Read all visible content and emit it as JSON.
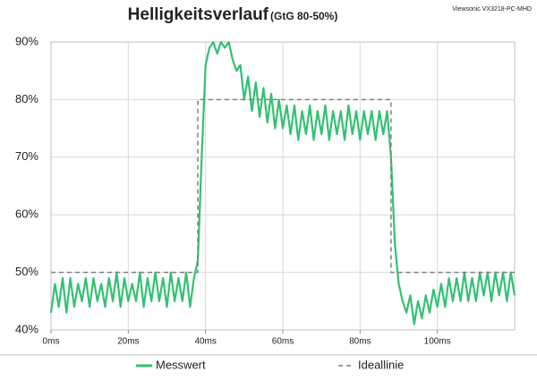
{
  "chart_data": {
    "type": "line",
    "title": "Helligkeitsverlauf",
    "subtitle": "(GtG 80-50%)",
    "annotation": "Viewsonic VX3218-PC-MHD",
    "xlim": [
      0,
      120
    ],
    "xticks": [
      {
        "value": 0,
        "label": "0ms"
      },
      {
        "value": 20,
        "label": "20ms"
      },
      {
        "value": 40,
        "label": "40ms"
      },
      {
        "value": 60,
        "label": "60ms"
      },
      {
        "value": 80,
        "label": "80ms"
      },
      {
        "value": 100,
        "label": "100ms"
      }
    ],
    "ylim": [
      40,
      90
    ],
    "yticks": [
      {
        "value": 40,
        "label": "40%"
      },
      {
        "value": 50,
        "label": "50%"
      },
      {
        "value": 60,
        "label": "60%"
      },
      {
        "value": 70,
        "label": "70%"
      },
      {
        "value": 80,
        "label": "80%"
      },
      {
        "value": 90,
        "label": "90%"
      }
    ],
    "grid": true,
    "legend": "bottom",
    "series": [
      {
        "name": "Messwert",
        "color": "#33c172",
        "dash": false,
        "x": [
          0,
          1,
          2,
          3,
          4,
          5,
          6,
          7,
          8,
          9,
          10,
          11,
          12,
          13,
          14,
          15,
          16,
          17,
          18,
          19,
          20,
          21,
          22,
          23,
          24,
          25,
          26,
          27,
          28,
          29,
          30,
          31,
          32,
          33,
          34,
          35,
          36,
          37,
          38,
          39,
          40,
          41,
          42,
          43,
          44,
          45,
          46,
          47,
          48,
          49,
          50,
          51,
          52,
          53,
          54,
          55,
          56,
          57,
          58,
          59,
          60,
          61,
          62,
          63,
          64,
          65,
          66,
          67,
          68,
          69,
          70,
          71,
          72,
          73,
          74,
          75,
          76,
          77,
          78,
          79,
          80,
          81,
          82,
          83,
          84,
          85,
          86,
          87,
          88,
          89,
          90,
          91,
          92,
          93,
          94,
          95,
          96,
          97,
          98,
          99,
          100,
          101,
          102,
          103,
          104,
          105,
          106,
          107,
          108,
          109,
          110,
          111,
          112,
          113,
          114,
          115,
          116,
          117,
          118,
          119,
          120
        ],
        "values": [
          43,
          48,
          44,
          49,
          43,
          49,
          44,
          48,
          45,
          49,
          44,
          49,
          45,
          48,
          44,
          49,
          45,
          50,
          44,
          49,
          45,
          48,
          45,
          50,
          44,
          49,
          45,
          50,
          45,
          49,
          44,
          50,
          45,
          49,
          45,
          50,
          44,
          49,
          52,
          70,
          86,
          89,
          90,
          88,
          90,
          89,
          90,
          87,
          85,
          86,
          80,
          84,
          78,
          83,
          77,
          82,
          76,
          81,
          75,
          80,
          75,
          79,
          74,
          79,
          73,
          78,
          74,
          79,
          73,
          78,
          74,
          79,
          73,
          78,
          74,
          78,
          73,
          79,
          74,
          78,
          73,
          78,
          74,
          78,
          73,
          78,
          74,
          78,
          70,
          55,
          48,
          45,
          43,
          46,
          41,
          45,
          42,
          46,
          43,
          47,
          44,
          48,
          44,
          49,
          45,
          49,
          45,
          50,
          45,
          49,
          45,
          50,
          46,
          50,
          45,
          50,
          46,
          50,
          45,
          50,
          46
        ]
      },
      {
        "name": "Ideallinie",
        "color": "#7f7f7f",
        "dash": true,
        "x": [
          0,
          38,
          38,
          88,
          88,
          120
        ],
        "values": [
          50,
          50,
          80,
          80,
          50,
          50
        ]
      }
    ]
  }
}
